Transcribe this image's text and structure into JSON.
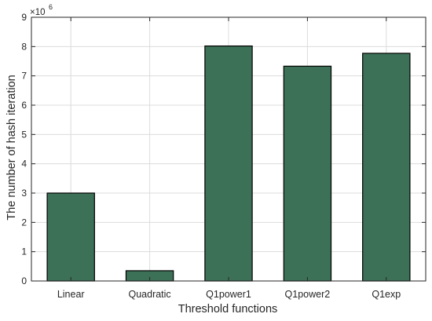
{
  "chart_data": {
    "type": "bar",
    "title": "",
    "xlabel": "Threshold functions",
    "ylabel": "The number of hash iteration",
    "exponent_label": "×10",
    "exponent_power": "6",
    "categories": [
      "Linear",
      "Quadratic",
      "Q1power1",
      "Q1power2",
      "Q1exp"
    ],
    "values": [
      3000000,
      350000,
      8020000,
      7330000,
      7770000
    ],
    "ylim": [
      0,
      9000000
    ],
    "yticks": [
      0,
      1,
      2,
      3,
      4,
      5,
      6,
      7,
      8,
      9
    ],
    "ytick_scale": 1000000,
    "grid": true,
    "bar_color": "#3c7157",
    "bar_edge_color": "#000000",
    "grid_color": "#dcdcdc",
    "axis_color": "#262626"
  }
}
